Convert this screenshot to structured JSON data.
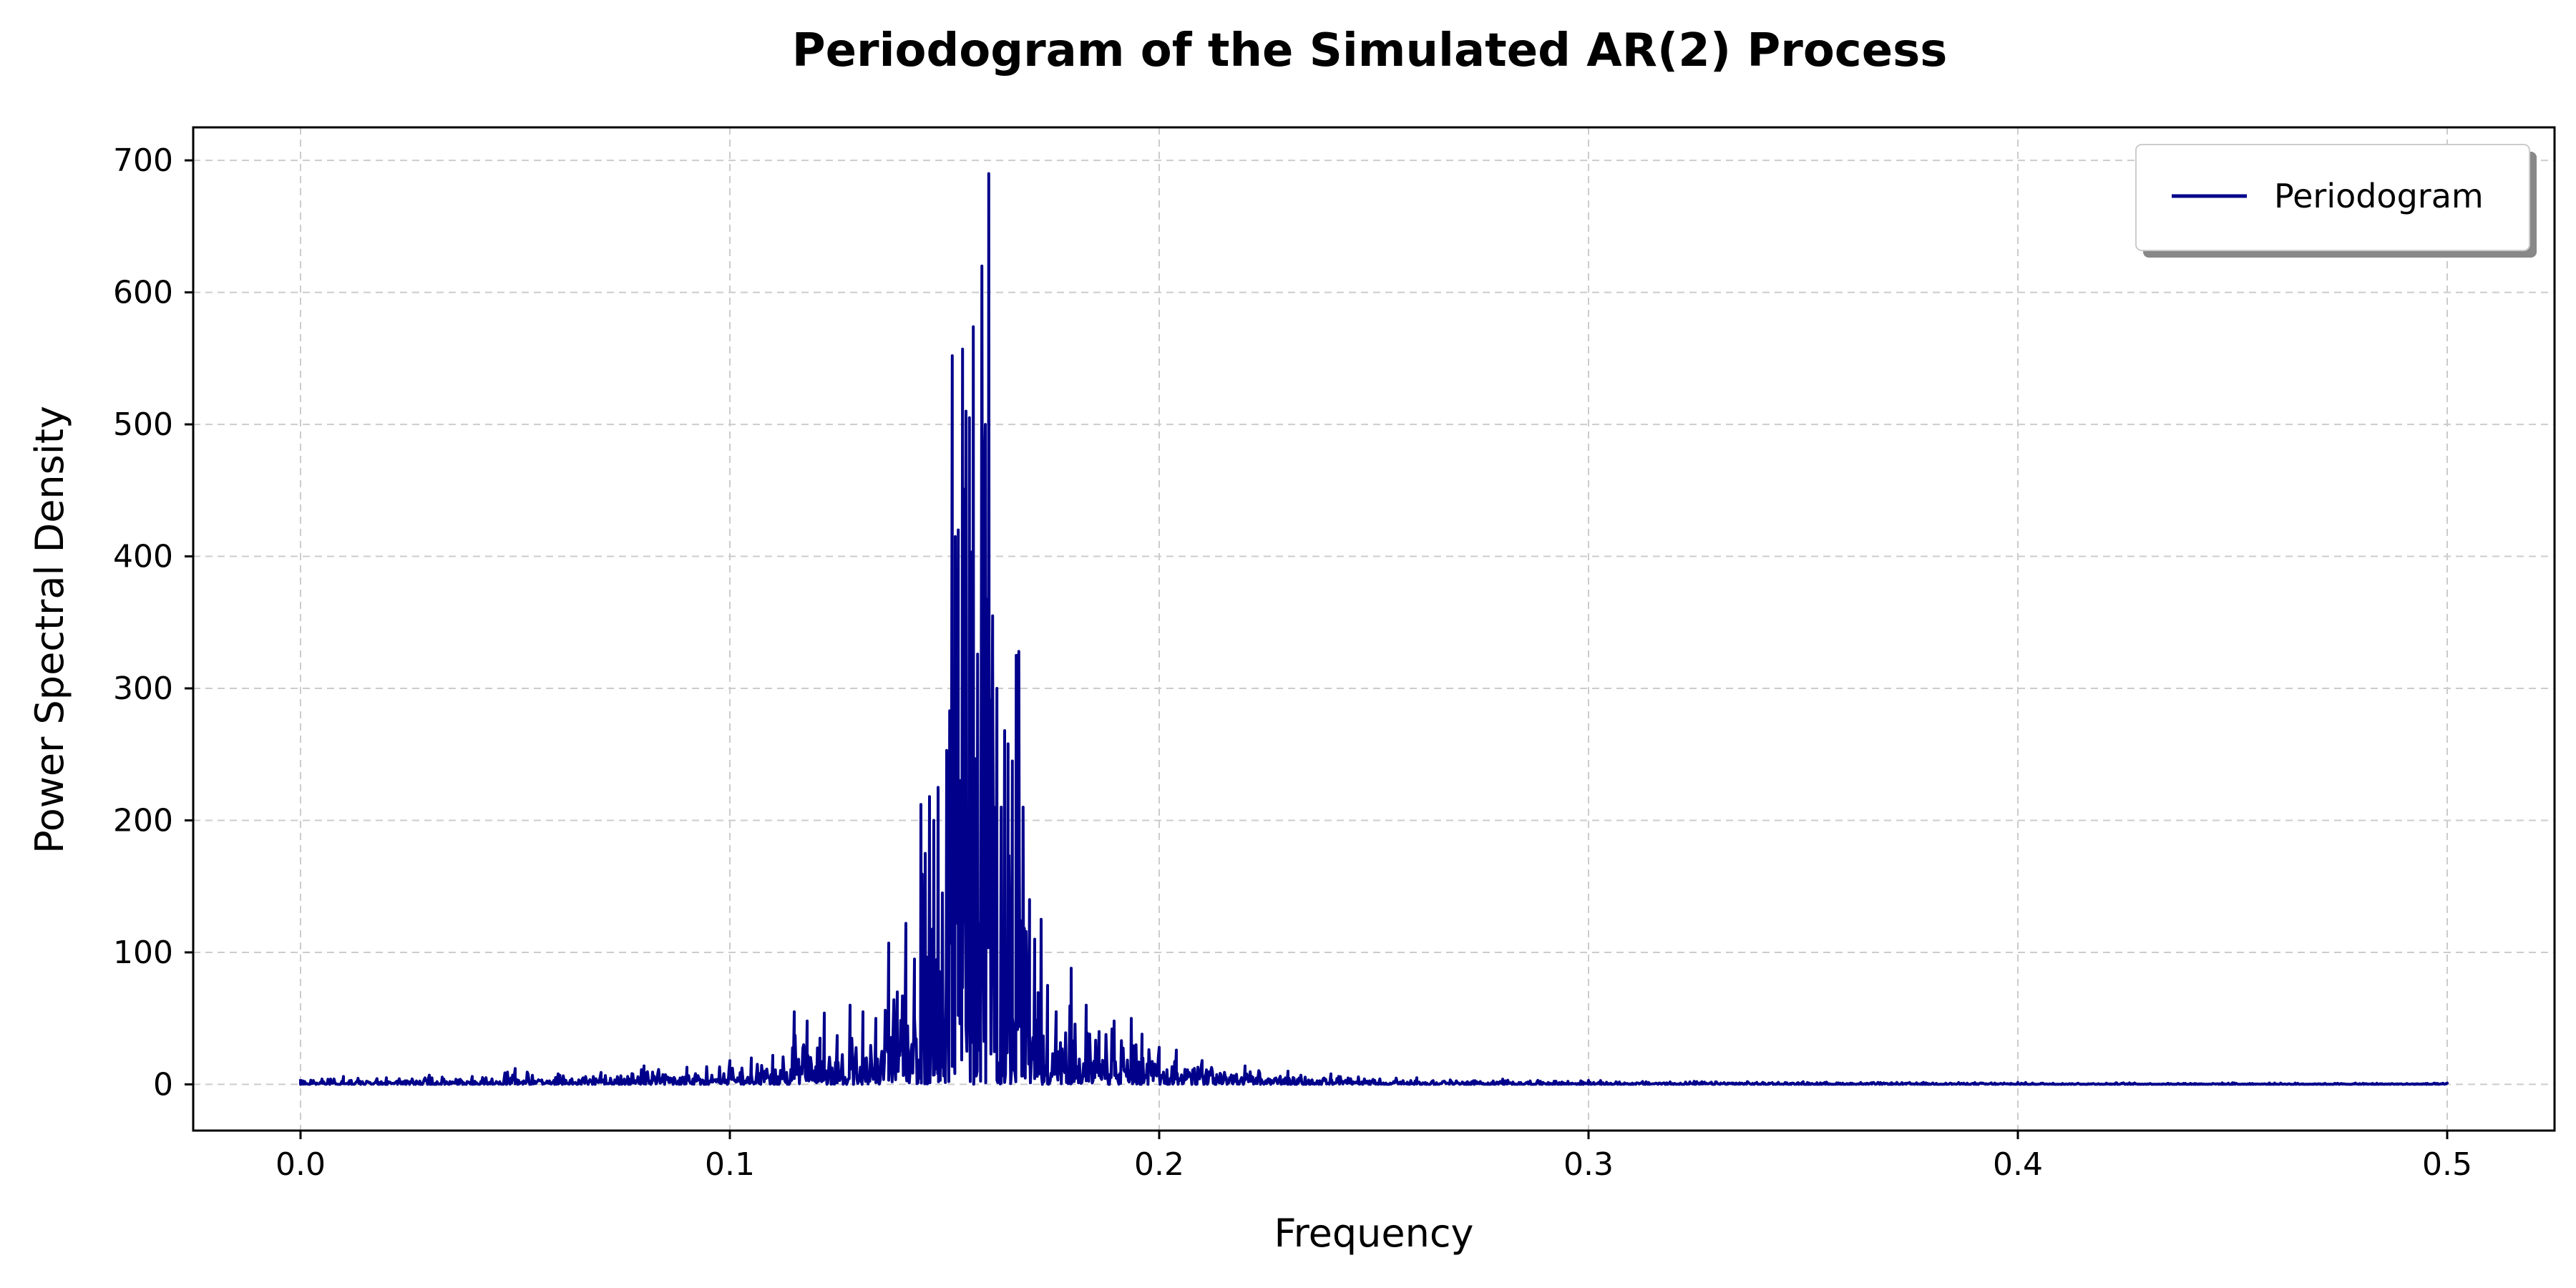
{
  "chart_data": {
    "type": "line",
    "title": "Periodogram of the Simulated AR(2) Process",
    "xlabel": "Frequency",
    "ylabel": "Power Spectral Density",
    "xlim": [
      -0.025,
      0.525
    ],
    "ylim": [
      -35,
      725
    ],
    "xticks": [
      0.0,
      0.1,
      0.2,
      0.3,
      0.4,
      0.5
    ],
    "xtick_labels": [
      "0.0",
      "0.1",
      "0.2",
      "0.3",
      "0.4",
      "0.5"
    ],
    "yticks": [
      0,
      100,
      200,
      300,
      400,
      500,
      600,
      700
    ],
    "ytick_labels": [
      "0",
      "100",
      "200",
      "300",
      "400",
      "500",
      "600",
      "700"
    ],
    "grid": true,
    "legend_position": "upper right",
    "colors": {
      "line": "#00008b",
      "grid": "#cccccc",
      "axes": "#000000"
    },
    "series": [
      {
        "name": "Periodogram",
        "peaks": [
          [
            0.0,
            4
          ],
          [
            0.01,
            6
          ],
          [
            0.02,
            5
          ],
          [
            0.03,
            7
          ],
          [
            0.04,
            6
          ],
          [
            0.05,
            12
          ],
          [
            0.06,
            8
          ],
          [
            0.07,
            9
          ],
          [
            0.08,
            14
          ],
          [
            0.09,
            13
          ],
          [
            0.1,
            18
          ],
          [
            0.105,
            20
          ],
          [
            0.11,
            22
          ],
          [
            0.115,
            55
          ],
          [
            0.118,
            48
          ],
          [
            0.121,
            35
          ],
          [
            0.122,
            54
          ],
          [
            0.125,
            37
          ],
          [
            0.128,
            60
          ],
          [
            0.131,
            55
          ],
          [
            0.134,
            50
          ],
          [
            0.137,
            107
          ],
          [
            0.139,
            70
          ],
          [
            0.141,
            122
          ],
          [
            0.143,
            95
          ],
          [
            0.1445,
            212
          ],
          [
            0.1455,
            175
          ],
          [
            0.1465,
            218
          ],
          [
            0.1475,
            200
          ],
          [
            0.1485,
            225
          ],
          [
            0.1495,
            145
          ],
          [
            0.1505,
            253
          ],
          [
            0.1512,
            283
          ],
          [
            0.1518,
            552
          ],
          [
            0.1525,
            415
          ],
          [
            0.1532,
            420
          ],
          [
            0.1542,
            557
          ],
          [
            0.155,
            510
          ],
          [
            0.1558,
            505
          ],
          [
            0.1567,
            574
          ],
          [
            0.1577,
            326
          ],
          [
            0.1587,
            620
          ],
          [
            0.1595,
            500
          ],
          [
            0.1603,
            690
          ],
          [
            0.1612,
            355
          ],
          [
            0.1622,
            300
          ],
          [
            0.1632,
            210
          ],
          [
            0.164,
            268
          ],
          [
            0.1648,
            258
          ],
          [
            0.1658,
            245
          ],
          [
            0.1667,
            325
          ],
          [
            0.1673,
            328
          ],
          [
            0.1683,
            210
          ],
          [
            0.1698,
            140
          ],
          [
            0.171,
            110
          ],
          [
            0.1725,
            125
          ],
          [
            0.174,
            75
          ],
          [
            0.176,
            55
          ],
          [
            0.1795,
            88
          ],
          [
            0.183,
            60
          ],
          [
            0.186,
            40
          ],
          [
            0.1895,
            48
          ],
          [
            0.1935,
            50
          ],
          [
            0.196,
            38
          ],
          [
            0.2,
            28
          ],
          [
            0.204,
            26
          ],
          [
            0.21,
            18
          ],
          [
            0.22,
            14
          ],
          [
            0.23,
            10
          ],
          [
            0.24,
            8
          ],
          [
            0.26,
            5
          ],
          [
            0.28,
            4
          ],
          [
            0.3,
            3
          ],
          [
            0.35,
            2
          ],
          [
            0.4,
            1.5
          ],
          [
            0.45,
            1.2
          ],
          [
            0.5,
            1
          ]
        ]
      }
    ]
  }
}
